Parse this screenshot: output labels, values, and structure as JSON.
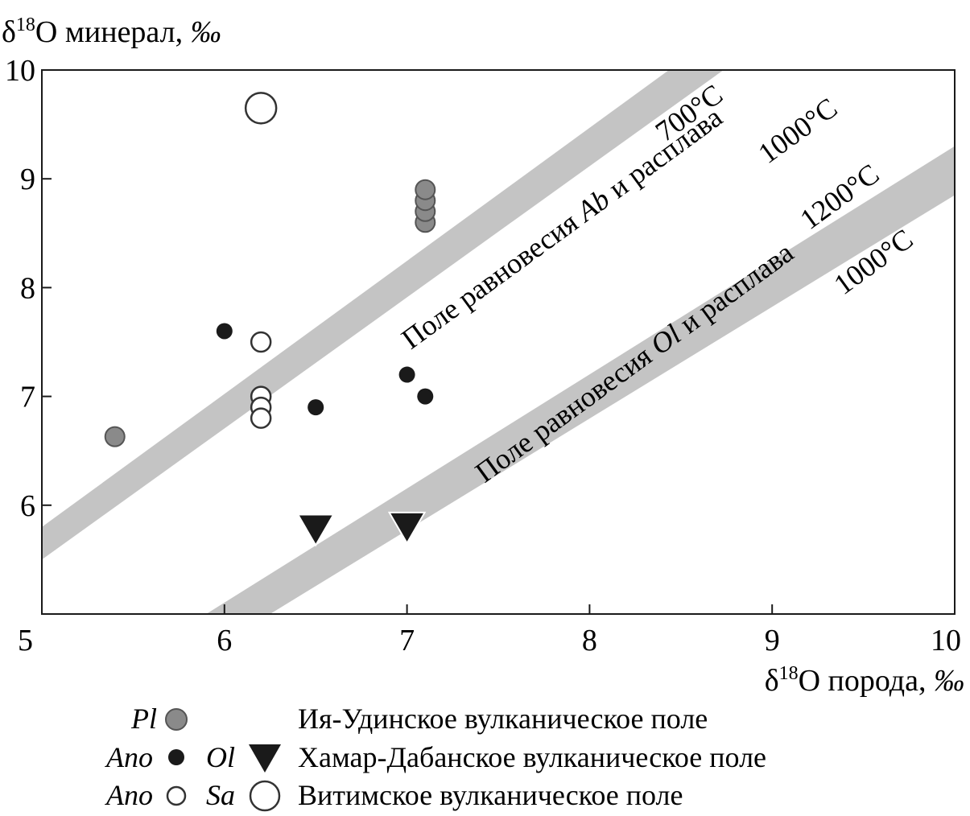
{
  "chart_data": {
    "type": "scatter",
    "title": "",
    "ylabel": {
      "delta": "δ",
      "sup": "18",
      "text": "O минерал, ",
      "unit": "‰"
    },
    "xlabel": {
      "delta": "δ",
      "sup": "18",
      "text": "O порода, ",
      "unit": "‰"
    },
    "xlim": [
      5,
      10
    ],
    "ylim": [
      5,
      10
    ],
    "x_ticks": [
      "5",
      "6",
      "7",
      "8",
      "9",
      "10"
    ],
    "y_ticks": [
      "6",
      "7",
      "8",
      "9",
      "10"
    ],
    "grid": false,
    "bands": [
      {
        "name": "Ab",
        "label_prefix": "Поле равновесия ",
        "label_mineral": "Ab",
        "label_suffix": " и расплава",
        "color": "#c4c4c4",
        "upper_line": [
          [
            5,
            5.8
          ],
          [
            8.5,
            10.08
          ]
        ],
        "lower_line": [
          [
            5,
            5.5
          ],
          [
            8.8,
            10.08
          ]
        ],
        "upper_temp": "700°С",
        "lower_temp": "1000°С"
      },
      {
        "name": "Ol",
        "label_prefix": "Поле равновесия ",
        "label_mineral": "Ol",
        "label_suffix": " и расплава",
        "color": "#c4c4c4",
        "upper_line": [
          [
            5.9,
            5.0
          ],
          [
            10,
            9.3
          ]
        ],
        "lower_line": [
          [
            6.25,
            5.0
          ],
          [
            10,
            8.85
          ]
        ],
        "upper_temp": "1200°С",
        "lower_temp": "1000°С"
      }
    ],
    "series": [
      {
        "key": "iya_pl",
        "marker": "circle-gray",
        "color": "#8a8a8a",
        "points": [
          [
            5.4,
            6.63
          ],
          [
            7.1,
            8.6
          ],
          [
            7.1,
            8.7
          ],
          [
            7.1,
            8.8
          ],
          [
            7.1,
            8.9
          ]
        ]
      },
      {
        "key": "khamar_ano",
        "marker": "circle-black",
        "color": "#1a1a1a",
        "points": [
          [
            6.0,
            7.6
          ],
          [
            6.5,
            6.9
          ],
          [
            7.0,
            7.2
          ],
          [
            7.1,
            7.0
          ]
        ]
      },
      {
        "key": "khamar_ol",
        "marker": "triangle-down",
        "color": "#1a1a1a",
        "points": [
          [
            6.5,
            5.78
          ],
          [
            7.0,
            5.8
          ]
        ]
      },
      {
        "key": "vitim_ano",
        "marker": "circle-open-small",
        "color": "#333333",
        "points": [
          [
            6.2,
            7.5
          ],
          [
            6.2,
            7.0
          ],
          [
            6.2,
            6.9
          ],
          [
            6.2,
            6.8
          ]
        ]
      },
      {
        "key": "vitim_sa",
        "marker": "circle-open-large",
        "color": "#333333",
        "points": [
          [
            6.2,
            9.65
          ]
        ]
      }
    ],
    "legend": [
      {
        "abbr": "Pl",
        "marker": "circle-gray",
        "abbr2": "",
        "marker2": "",
        "text": "Ия-Удинское вулканическое поле"
      },
      {
        "abbr": "Ano",
        "marker": "circle-black",
        "abbr2": "Ol",
        "marker2": "triangle-down",
        "text": "Хамар-Дабанское вулканическое поле"
      },
      {
        "abbr": "Ano",
        "marker": "circle-open-small",
        "abbr2": "Sa",
        "marker2": "circle-open-large",
        "text": "Витимское вулканическое поле"
      }
    ]
  }
}
